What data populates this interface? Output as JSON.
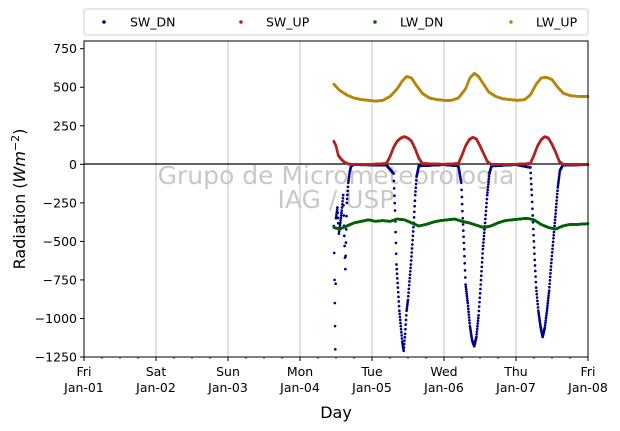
{
  "chart_data": {
    "type": "scatter",
    "xlabel": "Day",
    "ylabel_prefix": "Radiation (",
    "ylabel_unit_base": "Wm",
    "ylabel_unit_exp": "−2",
    "ylabel_suffix": ")",
    "ylim": [
      -1250,
      800
    ],
    "xlim": [
      0,
      7
    ],
    "grid": "vertical",
    "legend_position": "top",
    "yticks": [
      750,
      500,
      250,
      0,
      -250,
      -500,
      -750,
      -1000,
      -1250
    ],
    "ytick_labels": [
      "750",
      "500",
      "250",
      "0",
      "−250",
      "−500",
      "−750",
      "−1000",
      "−1250"
    ],
    "xticks": [
      {
        "day": "Fri",
        "date": "Jan-01"
      },
      {
        "day": "Sat",
        "date": "Jan-02"
      },
      {
        "day": "Sun",
        "date": "Jan-03"
      },
      {
        "day": "Mon",
        "date": "Jan-04"
      },
      {
        "day": "Tue",
        "date": "Jan-05"
      },
      {
        "day": "Wed",
        "date": "Jan-06"
      },
      {
        "day": "Thu",
        "date": "Jan-07"
      },
      {
        "day": "Fri",
        "date": "Jan-08"
      }
    ],
    "watermark": [
      "Grupo de Micrometeorologia",
      "IAG / USP"
    ],
    "series": [
      {
        "name": "SW_DN",
        "color": "#00008b",
        "points": [
          [
            3.47,
            -400
          ],
          [
            3.48,
            -750
          ],
          [
            3.49,
            -1200
          ],
          [
            3.5,
            -350
          ],
          [
            3.52,
            -280
          ],
          [
            3.54,
            -450
          ],
          [
            3.56,
            -380
          ],
          [
            3.58,
            -300
          ],
          [
            3.6,
            -200
          ],
          [
            3.62,
            -530
          ],
          [
            3.63,
            -680
          ],
          [
            3.65,
            -250
          ],
          [
            3.67,
            -120
          ],
          [
            3.69,
            -50
          ],
          [
            3.71,
            -10
          ],
          [
            3.75,
            -2
          ],
          [
            4.2,
            -5
          ],
          [
            4.3,
            -60
          ],
          [
            4.32,
            -300
          ],
          [
            4.34,
            -650
          ],
          [
            4.36,
            -800
          ],
          [
            4.38,
            -950
          ],
          [
            4.4,
            -1050
          ],
          [
            4.42,
            -1150
          ],
          [
            4.44,
            -1210
          ],
          [
            4.46,
            -1100
          ],
          [
            4.48,
            -950
          ],
          [
            4.5,
            -880
          ],
          [
            4.52,
            -760
          ],
          [
            4.54,
            -650
          ],
          [
            4.56,
            -520
          ],
          [
            4.58,
            -380
          ],
          [
            4.6,
            -200
          ],
          [
            4.62,
            -80
          ],
          [
            4.65,
            -10
          ],
          [
            5.0,
            -2
          ],
          [
            5.2,
            -10
          ],
          [
            5.24,
            -120
          ],
          [
            5.26,
            -350
          ],
          [
            5.28,
            -550
          ],
          [
            5.3,
            -780
          ],
          [
            5.33,
            -900
          ],
          [
            5.36,
            -1050
          ],
          [
            5.39,
            -1140
          ],
          [
            5.42,
            -1180
          ],
          [
            5.45,
            -1120
          ],
          [
            5.48,
            -980
          ],
          [
            5.51,
            -780
          ],
          [
            5.54,
            -550
          ],
          [
            5.57,
            -380
          ],
          [
            5.6,
            -200
          ],
          [
            5.63,
            -60
          ],
          [
            5.66,
            -10
          ],
          [
            6.0,
            -2
          ],
          [
            6.2,
            -20
          ],
          [
            6.22,
            -200
          ],
          [
            6.24,
            -420
          ],
          [
            6.26,
            -620
          ],
          [
            6.28,
            -800
          ],
          [
            6.31,
            -950
          ],
          [
            6.34,
            -1050
          ],
          [
            6.37,
            -1120
          ],
          [
            6.4,
            -1060
          ],
          [
            6.43,
            -950
          ],
          [
            6.46,
            -820
          ],
          [
            6.49,
            -640
          ],
          [
            6.52,
            -480
          ],
          [
            6.55,
            -320
          ],
          [
            6.58,
            -150
          ],
          [
            6.61,
            -40
          ],
          [
            6.65,
            -5
          ],
          [
            7.0,
            -2
          ]
        ]
      },
      {
        "name": "SW_UP",
        "color": "#b22222",
        "points": [
          [
            3.47,
            150
          ],
          [
            3.5,
            120
          ],
          [
            3.53,
            60
          ],
          [
            3.56,
            40
          ],
          [
            3.6,
            20
          ],
          [
            3.65,
            5
          ],
          [
            3.7,
            0
          ],
          [
            4.0,
            0
          ],
          [
            4.2,
            5
          ],
          [
            4.25,
            50
          ],
          [
            4.3,
            110
          ],
          [
            4.35,
            150
          ],
          [
            4.4,
            170
          ],
          [
            4.45,
            180
          ],
          [
            4.5,
            170
          ],
          [
            4.55,
            150
          ],
          [
            4.6,
            100
          ],
          [
            4.65,
            40
          ],
          [
            4.7,
            5
          ],
          [
            5.0,
            0
          ],
          [
            5.2,
            5
          ],
          [
            5.25,
            60
          ],
          [
            5.3,
            120
          ],
          [
            5.35,
            160
          ],
          [
            5.4,
            175
          ],
          [
            5.45,
            165
          ],
          [
            5.5,
            120
          ],
          [
            5.55,
            70
          ],
          [
            5.6,
            20
          ],
          [
            5.65,
            0
          ],
          [
            6.0,
            0
          ],
          [
            6.2,
            5
          ],
          [
            6.25,
            60
          ],
          [
            6.3,
            120
          ],
          [
            6.35,
            160
          ],
          [
            6.4,
            180
          ],
          [
            6.45,
            170
          ],
          [
            6.5,
            130
          ],
          [
            6.55,
            80
          ],
          [
            6.6,
            20
          ],
          [
            6.65,
            0
          ],
          [
            7.0,
            0
          ]
        ]
      },
      {
        "name": "LW_DN",
        "color": "#006400",
        "points": [
          [
            3.47,
            -410
          ],
          [
            3.55,
            -420
          ],
          [
            3.65,
            -400
          ],
          [
            3.75,
            -380
          ],
          [
            3.85,
            -370
          ],
          [
            3.95,
            -360
          ],
          [
            4.05,
            -370
          ],
          [
            4.15,
            -365
          ],
          [
            4.25,
            -370
          ],
          [
            4.35,
            -355
          ],
          [
            4.45,
            -360
          ],
          [
            4.55,
            -380
          ],
          [
            4.65,
            -400
          ],
          [
            4.75,
            -390
          ],
          [
            4.85,
            -375
          ],
          [
            4.95,
            -365
          ],
          [
            5.05,
            -360
          ],
          [
            5.15,
            -355
          ],
          [
            5.25,
            -370
          ],
          [
            5.35,
            -380
          ],
          [
            5.45,
            -395
          ],
          [
            5.55,
            -410
          ],
          [
            5.65,
            -400
          ],
          [
            5.75,
            -380
          ],
          [
            5.85,
            -365
          ],
          [
            5.95,
            -360
          ],
          [
            6.05,
            -355
          ],
          [
            6.15,
            -350
          ],
          [
            6.25,
            -360
          ],
          [
            6.35,
            -390
          ],
          [
            6.45,
            -410
          ],
          [
            6.55,
            -420
          ],
          [
            6.65,
            -400
          ],
          [
            6.75,
            -390
          ],
          [
            6.85,
            -390
          ],
          [
            7.0,
            -385
          ]
        ]
      },
      {
        "name": "LW_UP",
        "color": "#b8860b",
        "points": [
          [
            3.47,
            520
          ],
          [
            3.55,
            480
          ],
          [
            3.65,
            450
          ],
          [
            3.75,
            430
          ],
          [
            3.85,
            420
          ],
          [
            3.95,
            415
          ],
          [
            4.05,
            410
          ],
          [
            4.15,
            415
          ],
          [
            4.25,
            440
          ],
          [
            4.35,
            490
          ],
          [
            4.42,
            540
          ],
          [
            4.48,
            570
          ],
          [
            4.55,
            560
          ],
          [
            4.62,
            510
          ],
          [
            4.7,
            460
          ],
          [
            4.8,
            430
          ],
          [
            4.9,
            420
          ],
          [
            5.0,
            415
          ],
          [
            5.1,
            415
          ],
          [
            5.2,
            430
          ],
          [
            5.3,
            490
          ],
          [
            5.36,
            560
          ],
          [
            5.42,
            590
          ],
          [
            5.48,
            570
          ],
          [
            5.55,
            520
          ],
          [
            5.62,
            470
          ],
          [
            5.72,
            440
          ],
          [
            5.82,
            425
          ],
          [
            5.92,
            420
          ],
          [
            6.02,
            415
          ],
          [
            6.12,
            420
          ],
          [
            6.2,
            450
          ],
          [
            6.28,
            520
          ],
          [
            6.35,
            560
          ],
          [
            6.42,
            565
          ],
          [
            6.5,
            550
          ],
          [
            6.58,
            500
          ],
          [
            6.66,
            460
          ],
          [
            6.76,
            445
          ],
          [
            6.88,
            440
          ],
          [
            7.0,
            440
          ]
        ]
      }
    ]
  }
}
